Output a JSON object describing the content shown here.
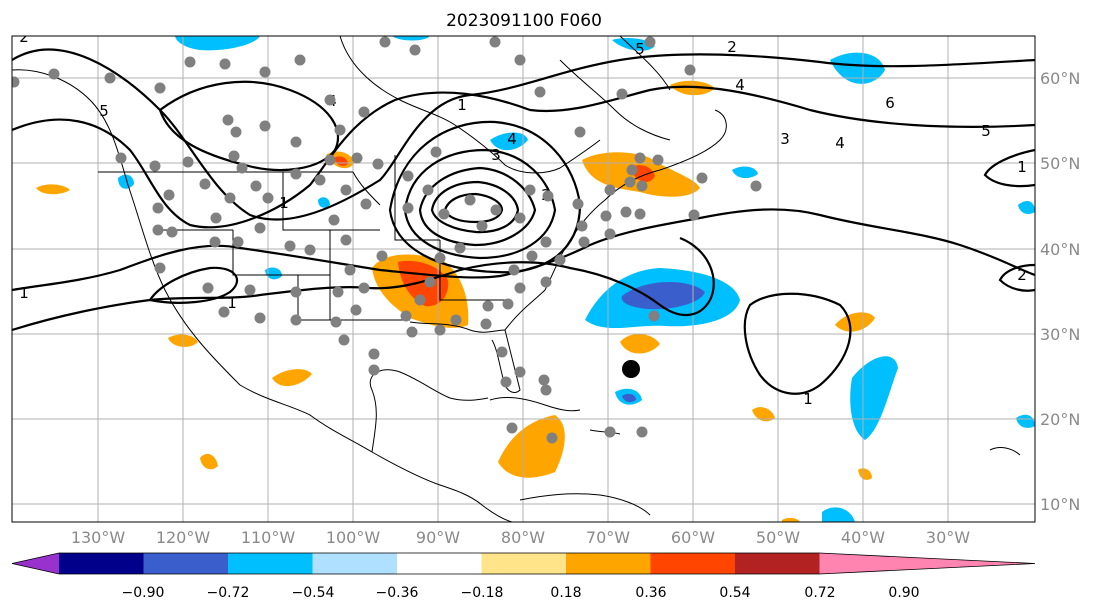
{
  "title": "2023091100 F060",
  "map": {
    "lon_labels": [
      "130°W",
      "120°W",
      "110°W",
      "100°W",
      "90°W",
      "80°W",
      "70°W",
      "60°W",
      "50°W",
      "40°W",
      "30°W"
    ],
    "lat_labels": [
      "60°N",
      "50°N",
      "40°N",
      "30°N",
      "20°N",
      "10°N"
    ],
    "contour_labels": [
      "5",
      "5",
      "4",
      "3",
      "4",
      "5",
      "6",
      "1",
      "1",
      "1",
      "2",
      "1",
      "1",
      "3",
      "4",
      "2",
      "4",
      "2",
      "1",
      "2"
    ],
    "storm_marker": "black-dot"
  },
  "colorbar": {
    "tick_labels": [
      "−0.90",
      "−0.72",
      "−0.54",
      "−0.36",
      "−0.18",
      "0.18",
      "0.36",
      "0.54",
      "0.72",
      "0.90"
    ],
    "colors": [
      "#9932cc",
      "#00008b",
      "#3a5fcd",
      "#00bfff",
      "#b0e0ff",
      "#ffffff",
      "#ffe48a",
      "#ffa500",
      "#ff4500",
      "#b22222",
      "#ff85b0"
    ]
  }
}
